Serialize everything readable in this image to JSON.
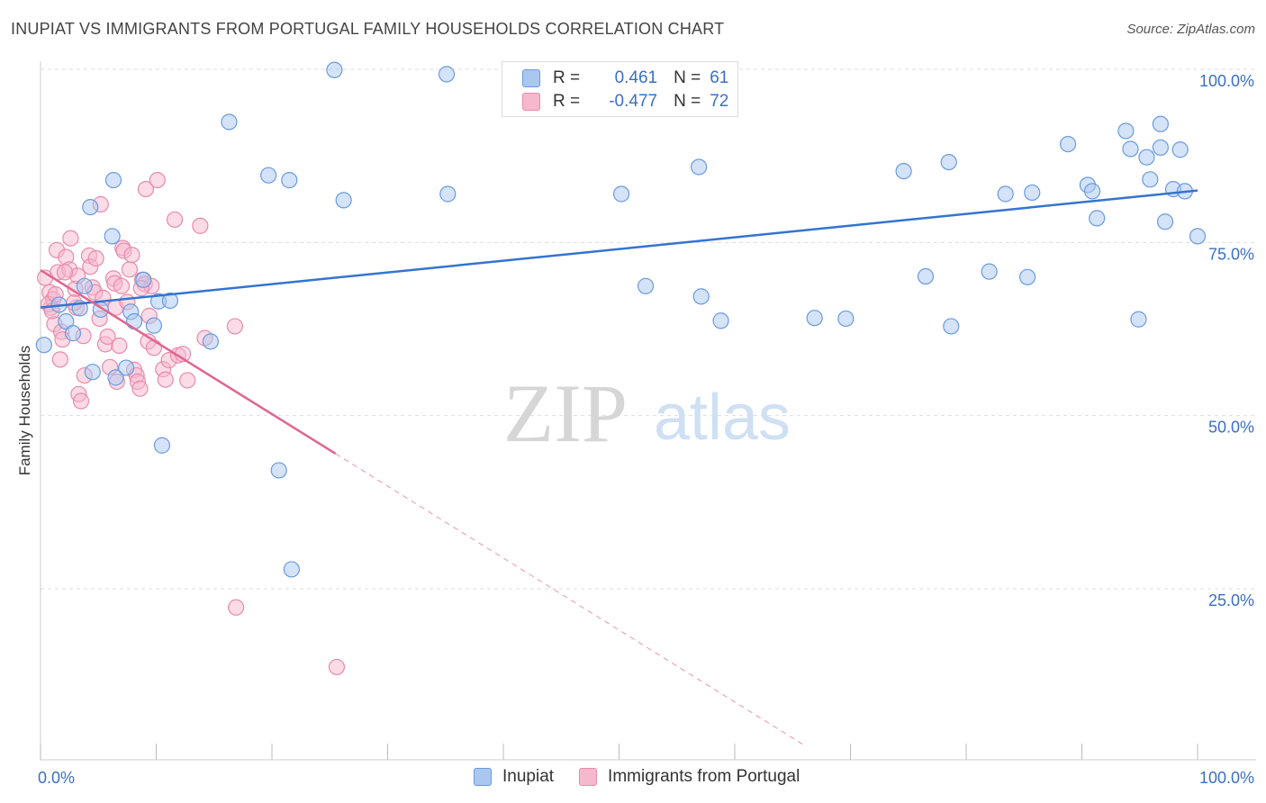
{
  "header": {
    "title": "INUPIAT VS IMMIGRANTS FROM PORTUGAL FAMILY HOUSEHOLDS CORRELATION CHART",
    "source": "Source: ZipAtlas.com"
  },
  "watermark": {
    "zip": "ZIP",
    "atlas": "atlas"
  },
  "legend": {
    "inupiat": {
      "r_label": "R =",
      "r_value": "0.461",
      "n_label": "N =",
      "n_value": "61"
    },
    "portugal": {
      "r_label": "R =",
      "r_value": "-0.477",
      "n_label": "N =",
      "n_value": "72"
    }
  },
  "bottom_legend": {
    "inupiat": "Inupiat",
    "portugal": "Immigrants from Portugal"
  },
  "colors": {
    "inupiat_fill": "#a9c7ef",
    "inupiat_stroke": "#6a9be0",
    "inupiat_line": "#3374d1",
    "portugal_fill": "#f5b8cd",
    "portugal_stroke": "#e98bab",
    "portugal_line": "#e0668f",
    "axis_text": "#3b6fc4",
    "grid": "#dddddd"
  },
  "chart_data": {
    "type": "scatter",
    "title": "INUPIAT VS IMMIGRANTS FROM PORTUGAL FAMILY HOUSEHOLDS CORRELATION CHART",
    "xlabel": "",
    "ylabel": "Family Households",
    "xlim": [
      0,
      100
    ],
    "ylim": [
      0,
      102
    ],
    "x_tick_labels": [
      "0.0%",
      "100.0%"
    ],
    "y_ticks": [
      25,
      50,
      75,
      100
    ],
    "y_tick_labels": [
      "25.0%",
      "50.0%",
      "75.0%",
      "100.0%"
    ],
    "grid": true,
    "series": [
      {
        "name": "Inupiat",
        "trend": {
          "x": [
            0,
            100
          ],
          "y": [
            65.6,
            82.5
          ],
          "dashed_x": []
        },
        "points": [
          [
            0.3,
            60.2
          ],
          [
            1.6,
            66.0
          ],
          [
            2.2,
            63.6
          ],
          [
            2.8,
            61.9
          ],
          [
            3.4,
            65.5
          ],
          [
            3.8,
            68.7
          ],
          [
            4.5,
            56.3
          ],
          [
            4.3,
            80.1
          ],
          [
            5.2,
            65.3
          ],
          [
            6.2,
            75.9
          ],
          [
            6.3,
            84.0
          ],
          [
            6.5,
            55.5
          ],
          [
            7.4,
            56.9
          ],
          [
            7.8,
            65.0
          ],
          [
            8.1,
            63.6
          ],
          [
            8.9,
            69.6
          ],
          [
            9.8,
            63.0
          ],
          [
            10.2,
            66.5
          ],
          [
            10.5,
            45.7
          ],
          [
            11.2,
            66.6
          ],
          [
            14.7,
            60.7
          ],
          [
            16.3,
            92.4
          ],
          [
            19.7,
            84.7
          ],
          [
            20.6,
            42.1
          ],
          [
            21.5,
            84.0
          ],
          [
            21.7,
            27.8
          ],
          [
            25.4,
            99.9
          ],
          [
            26.2,
            81.1
          ],
          [
            35.1,
            99.3
          ],
          [
            35.2,
            82.0
          ],
          [
            50.2,
            82.0
          ],
          [
            52.3,
            68.7
          ],
          [
            56.9,
            85.9
          ],
          [
            57.1,
            67.2
          ],
          [
            58.8,
            63.7
          ],
          [
            66.9,
            64.1
          ],
          [
            69.6,
            64.0
          ],
          [
            74.6,
            85.3
          ],
          [
            76.5,
            70.1
          ],
          [
            78.5,
            86.6
          ],
          [
            78.7,
            62.9
          ],
          [
            82.0,
            70.8
          ],
          [
            83.4,
            82.0
          ],
          [
            85.3,
            70.0
          ],
          [
            85.7,
            82.2
          ],
          [
            88.8,
            89.2
          ],
          [
            90.5,
            83.3
          ],
          [
            90.9,
            82.4
          ],
          [
            91.3,
            78.5
          ],
          [
            93.8,
            91.1
          ],
          [
            94.2,
            88.5
          ],
          [
            94.9,
            63.9
          ],
          [
            95.6,
            87.3
          ],
          [
            95.9,
            84.1
          ],
          [
            96.8,
            92.1
          ],
          [
            96.8,
            88.7
          ],
          [
            97.2,
            78.0
          ],
          [
            97.9,
            82.7
          ],
          [
            98.5,
            88.4
          ],
          [
            98.9,
            82.4
          ],
          [
            100.0,
            75.9
          ]
        ]
      },
      {
        "name": "Immigrants from Portugal",
        "trend": {
          "x": [
            0,
            25.5
          ],
          "y": [
            71.0,
            44.5
          ],
          "dashed_x": [
            25.5,
            66.0
          ]
        },
        "points": [
          [
            0.4,
            69.9
          ],
          [
            0.8,
            67.8
          ],
          [
            0.9,
            65.6
          ],
          [
            1.1,
            66.8
          ],
          [
            1.2,
            63.2
          ],
          [
            1.4,
            73.9
          ],
          [
            1.5,
            70.7
          ],
          [
            1.7,
            58.1
          ],
          [
            1.8,
            62.1
          ],
          [
            1.9,
            61.0
          ],
          [
            2.2,
            72.9
          ],
          [
            2.5,
            71.1
          ],
          [
            2.6,
            75.6
          ],
          [
            3.0,
            68.3
          ],
          [
            3.1,
            65.6
          ],
          [
            3.2,
            70.2
          ],
          [
            3.3,
            53.1
          ],
          [
            3.5,
            52.1
          ],
          [
            3.7,
            61.5
          ],
          [
            3.8,
            55.8
          ],
          [
            4.2,
            73.1
          ],
          [
            4.3,
            71.5
          ],
          [
            4.5,
            68.5
          ],
          [
            4.7,
            67.8
          ],
          [
            4.8,
            72.7
          ],
          [
            5.1,
            64.0
          ],
          [
            5.2,
            80.5
          ],
          [
            5.6,
            60.3
          ],
          [
            5.8,
            61.4
          ],
          [
            6.0,
            57.0
          ],
          [
            6.3,
            69.8
          ],
          [
            6.4,
            69.1
          ],
          [
            6.5,
            65.6
          ],
          [
            6.6,
            54.9
          ],
          [
            6.8,
            60.1
          ],
          [
            7.0,
            68.7
          ],
          [
            7.1,
            74.2
          ],
          [
            7.2,
            73.8
          ],
          [
            7.5,
            66.4
          ],
          [
            7.7,
            71.1
          ],
          [
            7.9,
            73.2
          ],
          [
            8.1,
            56.6
          ],
          [
            8.3,
            55.8
          ],
          [
            8.4,
            54.9
          ],
          [
            8.6,
            53.9
          ],
          [
            8.8,
            69.6
          ],
          [
            9.0,
            69.0
          ],
          [
            9.1,
            82.7
          ],
          [
            9.3,
            60.7
          ],
          [
            9.4,
            64.4
          ],
          [
            9.6,
            68.7
          ],
          [
            9.8,
            59.8
          ],
          [
            10.1,
            84.0
          ],
          [
            10.6,
            56.7
          ],
          [
            10.8,
            55.2
          ],
          [
            11.1,
            58.0
          ],
          [
            11.6,
            78.3
          ],
          [
            11.9,
            58.7
          ],
          [
            12.3,
            58.9
          ],
          [
            12.7,
            55.1
          ],
          [
            13.8,
            77.4
          ],
          [
            14.2,
            61.2
          ],
          [
            16.8,
            62.9
          ],
          [
            16.9,
            22.3
          ],
          [
            25.6,
            13.7
          ],
          [
            0.7,
            66.1
          ],
          [
            1.0,
            65.1
          ],
          [
            2.1,
            70.7
          ],
          [
            1.3,
            67.5
          ],
          [
            5.4,
            67.0
          ],
          [
            8.7,
            68.4
          ],
          [
            2.9,
            66.3
          ]
        ]
      }
    ]
  }
}
